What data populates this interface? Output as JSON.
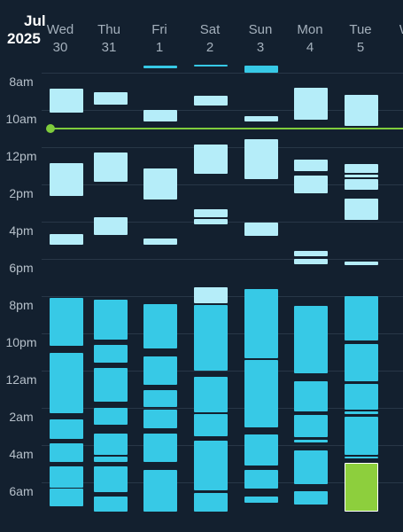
{
  "header": {
    "month": "Jul",
    "year": "2025"
  },
  "days": [
    {
      "name": "Wed",
      "num": "30"
    },
    {
      "name": "Thu",
      "num": "31"
    },
    {
      "name": "Fri",
      "num": "1"
    },
    {
      "name": "Sat",
      "num": "2"
    },
    {
      "name": "Sun",
      "num": "3"
    },
    {
      "name": "Mon",
      "num": "4"
    },
    {
      "name": "Tue",
      "num": "5"
    },
    {
      "name": "W",
      "num": ""
    }
  ],
  "time_labels": [
    "8am",
    "10am",
    "12pm",
    "2pm",
    "4pm",
    "6pm",
    "8pm",
    "10pm",
    "12am",
    "2am",
    "4am",
    "6am"
  ],
  "colors": {
    "background": "#13202f",
    "event_light": "#b5edf9",
    "event_main": "#37c9e6",
    "event_selected": "#8dcf3d",
    "now_line": "#7fcc3c"
  },
  "current_time_indicator": true,
  "selected_event": {
    "day": "Tue",
    "color": "#8dcf3d"
  }
}
